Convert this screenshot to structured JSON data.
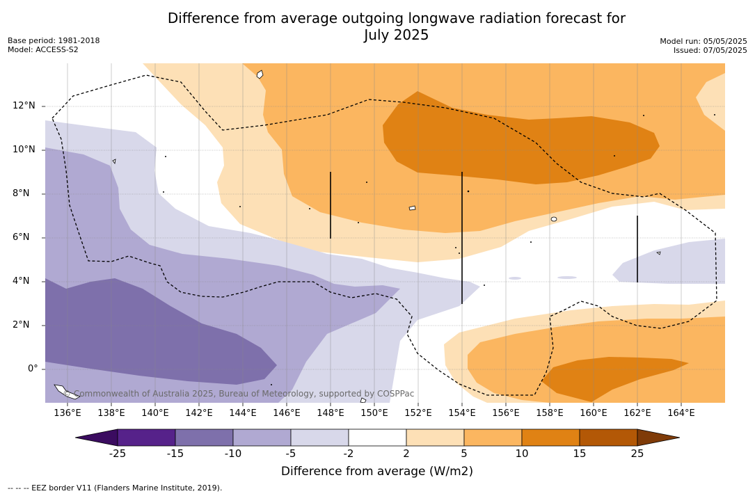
{
  "title_line1": "Difference from average outgoing longwave radiation forecast for",
  "title_line2": "July 2025",
  "base_period": "Base period: 1981-2018",
  "model": "Model: ACCESS-S2",
  "model_run": "Model run: 05/05/2025",
  "issued": "Issued: 07/05/2025",
  "copyright": "© Commonwealth of Australia 2025, Bureau of Meteorology, supported by COSPPac",
  "footer": "-- -- -- EEZ border V11 (Flanders Marine Institute, 2019).",
  "lat_labels": [
    "12°N",
    "10°N",
    "8°N",
    "6°N",
    "4°N",
    "2°N",
    "0°"
  ],
  "lon_labels": [
    "136°E",
    "138°E",
    "140°E",
    "142°E",
    "144°E",
    "146°E",
    "148°E",
    "150°E",
    "152°E",
    "154°E",
    "156°E",
    "158°E",
    "160°E",
    "162°E",
    "164°E"
  ],
  "colorbar": {
    "title": "Difference from average (W/m2)",
    "ticks": [
      "-25",
      "-15",
      "-10",
      "-5",
      "-2",
      "2",
      "5",
      "10",
      "15",
      "25"
    ],
    "colors": [
      "#56228a",
      "#7e70ab",
      "#b0a9d2",
      "#d8d8ea",
      "#ffffff",
      "#fde0b6",
      "#fbb660",
      "#e08214",
      "#b35806"
    ],
    "extend_low_color": "#3b0c60",
    "extend_high_color": "#7f3b08"
  },
  "colors": {
    "land": "#ffffff",
    "eez_line": "#000000",
    "grid": "#888888"
  }
}
